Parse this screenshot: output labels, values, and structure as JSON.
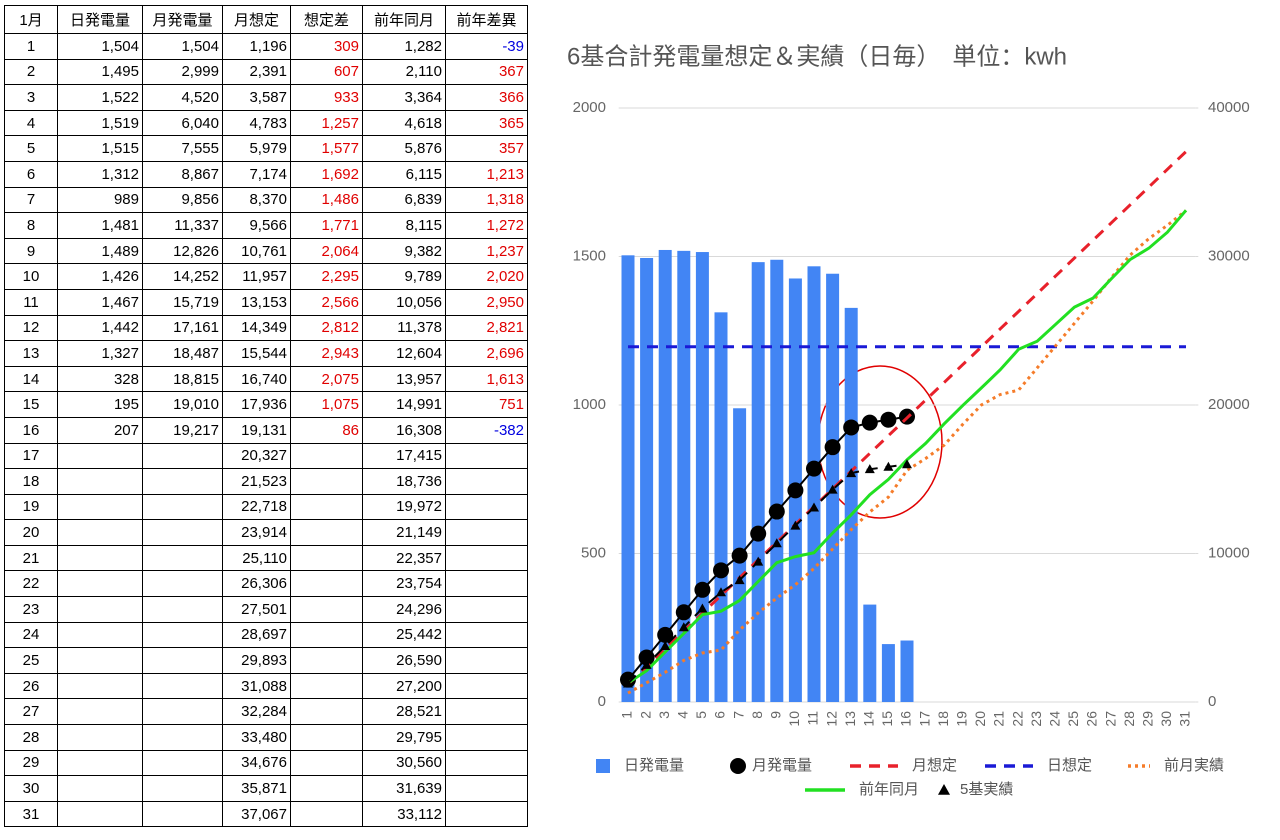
{
  "table": {
    "header": [
      "1月",
      "日発電量",
      "月発電量",
      "月想定",
      "想定差",
      "前年同月",
      "前年差異"
    ],
    "rows": [
      [
        "1",
        "1,504",
        "1,504",
        "1,196",
        "309",
        "1,282",
        "-39"
      ],
      [
        "2",
        "1,495",
        "2,999",
        "2,391",
        "607",
        "2,110",
        "367"
      ],
      [
        "3",
        "1,522",
        "4,520",
        "3,587",
        "933",
        "3,364",
        "366"
      ],
      [
        "4",
        "1,519",
        "6,040",
        "4,783",
        "1,257",
        "4,618",
        "365"
      ],
      [
        "5",
        "1,515",
        "7,555",
        "5,979",
        "1,577",
        "5,876",
        "357"
      ],
      [
        "6",
        "1,312",
        "8,867",
        "7,174",
        "1,692",
        "6,115",
        "1,213"
      ],
      [
        "7",
        "989",
        "9,856",
        "8,370",
        "1,486",
        "6,839",
        "1,318"
      ],
      [
        "8",
        "1,481",
        "11,337",
        "9,566",
        "1,771",
        "8,115",
        "1,272"
      ],
      [
        "9",
        "1,489",
        "12,826",
        "10,761",
        "2,064",
        "9,382",
        "1,237"
      ],
      [
        "10",
        "1,426",
        "14,252",
        "11,957",
        "2,295",
        "9,789",
        "2,020"
      ],
      [
        "11",
        "1,467",
        "15,719",
        "13,153",
        "2,566",
        "10,056",
        "2,950"
      ],
      [
        "12",
        "1,442",
        "17,161",
        "14,349",
        "2,812",
        "11,378",
        "2,821"
      ],
      [
        "13",
        "1,327",
        "18,487",
        "15,544",
        "2,943",
        "12,604",
        "2,696"
      ],
      [
        "14",
        "328",
        "18,815",
        "16,740",
        "2,075",
        "13,957",
        "1,613"
      ],
      [
        "15",
        "195",
        "19,010",
        "17,936",
        "1,075",
        "14,991",
        "751"
      ],
      [
        "16",
        "207",
        "19,217",
        "19,131",
        "86",
        "16,308",
        "-382"
      ],
      [
        "17",
        null,
        null,
        "20,327",
        null,
        "17,415",
        null
      ],
      [
        "18",
        null,
        null,
        "21,523",
        null,
        "18,736",
        null
      ],
      [
        "19",
        null,
        null,
        "22,718",
        null,
        "19,972",
        null
      ],
      [
        "20",
        null,
        null,
        "23,914",
        null,
        "21,149",
        null
      ],
      [
        "21",
        null,
        null,
        "25,110",
        null,
        "22,357",
        null
      ],
      [
        "22",
        null,
        null,
        "26,306",
        null,
        "23,754",
        null
      ],
      [
        "23",
        null,
        null,
        "27,501",
        null,
        "24,296",
        null
      ],
      [
        "24",
        null,
        null,
        "28,697",
        null,
        "25,442",
        null
      ],
      [
        "25",
        null,
        null,
        "29,893",
        null,
        "26,590",
        null
      ],
      [
        "26",
        null,
        null,
        "31,088",
        null,
        "27,200",
        null
      ],
      [
        "27",
        null,
        null,
        "32,284",
        null,
        "28,521",
        null
      ],
      [
        "28",
        null,
        null,
        "33,480",
        null,
        "29,795",
        null
      ],
      [
        "29",
        null,
        null,
        "34,676",
        null,
        "30,560",
        null
      ],
      [
        "30",
        null,
        null,
        "35,871",
        null,
        "31,639",
        null
      ],
      [
        "31",
        null,
        null,
        "37,067",
        null,
        "33,112",
        null
      ]
    ]
  },
  "chart_data": {
    "type": "combo",
    "title": "6基合計発電量想定＆実績（日毎）　単位：kwh",
    "categories": [
      1,
      2,
      3,
      4,
      5,
      6,
      7,
      8,
      9,
      10,
      11,
      12,
      13,
      14,
      15,
      16,
      17,
      18,
      19,
      20,
      21,
      22,
      23,
      24,
      25,
      26,
      27,
      28,
      29,
      30,
      31
    ],
    "ylim": [
      0,
      2000
    ],
    "yticks": [
      0,
      500,
      1000,
      1500,
      2000
    ],
    "y2lim": [
      0,
      40000
    ],
    "y2ticks": [
      0,
      10000,
      20000,
      30000,
      40000
    ],
    "grid": true,
    "series": [
      {
        "name": "日発電量",
        "kind": "bar",
        "color": "#4285f4",
        "values": [
          1504,
          1495,
          1522,
          1519,
          1515,
          1312,
          989,
          1481,
          1489,
          1426,
          1467,
          1442,
          1327,
          328,
          195,
          207,
          null,
          null,
          null,
          null,
          null,
          null,
          null,
          null,
          null,
          null,
          null,
          null,
          null,
          null,
          null
        ]
      },
      {
        "name": "月発電量",
        "kind": "line",
        "marker": "circle",
        "dash": "solid",
        "color": "#000000",
        "axis": "y2",
        "values": [
          1504,
          2999,
          4520,
          6040,
          7555,
          8867,
          9856,
          11337,
          12826,
          14252,
          15719,
          17161,
          18487,
          18815,
          19010,
          19217,
          null,
          null,
          null,
          null,
          null,
          null,
          null,
          null,
          null,
          null,
          null,
          null,
          null,
          null,
          null
        ]
      },
      {
        "name": "月想定",
        "kind": "line",
        "dash": "dashed",
        "color": "#e8212b",
        "axis": "y2",
        "values": [
          1196,
          2391,
          3587,
          4783,
          5979,
          7174,
          8370,
          9566,
          10761,
          11957,
          13153,
          14349,
          15544,
          16740,
          17936,
          19131,
          20327,
          21523,
          22718,
          23914,
          25110,
          26306,
          27501,
          28697,
          29893,
          31088,
          32284,
          33480,
          34676,
          35871,
          37067
        ]
      },
      {
        "name": "日想定",
        "kind": "line",
        "dash": "dashed",
        "color": "#1a1ad6",
        "values": [
          1196,
          1196,
          1196,
          1196,
          1196,
          1196,
          1196,
          1196,
          1196,
          1196,
          1196,
          1196,
          1196,
          1196,
          1196,
          1196,
          1196,
          1196,
          1196,
          1196,
          1196,
          1196,
          1196,
          1196,
          1196,
          1196,
          1196,
          1196,
          1196,
          1196,
          1196
        ]
      },
      {
        "name": "前月実績",
        "kind": "line",
        "dash": "dotted",
        "color": "#f57c2a",
        "axis": "y2",
        "values": [
          600,
          1300,
          2000,
          2800,
          3300,
          3500,
          4850,
          6000,
          7000,
          7900,
          9000,
          10300,
          11600,
          12800,
          13800,
          15600,
          16400,
          17300,
          18700,
          20000,
          20700,
          21000,
          22500,
          24000,
          25500,
          27000,
          28600,
          30100,
          31200,
          32100,
          33100
        ]
      },
      {
        "name": "前年同月",
        "kind": "line",
        "dash": "solid",
        "color": "#22e022",
        "axis": "y2",
        "values": [
          1282,
          2110,
          3364,
          4618,
          5876,
          6115,
          6839,
          8115,
          9382,
          9789,
          10056,
          11378,
          12604,
          13957,
          14991,
          16308,
          17415,
          18736,
          19972,
          21149,
          22357,
          23754,
          24296,
          25442,
          26590,
          27200,
          28521,
          29795,
          30560,
          31639,
          33112
        ]
      },
      {
        "name": "5基実績",
        "kind": "line",
        "marker": "triangle",
        "dash": "dashed",
        "color": "#000000",
        "axis": "y2",
        "values": [
          1250,
          2500,
          3770,
          5030,
          6300,
          7390,
          8210,
          9450,
          10690,
          11880,
          13100,
          14300,
          15410,
          15680,
          15840,
          16010,
          null,
          null,
          null,
          null,
          null,
          null,
          null,
          null,
          null,
          null,
          null,
          null,
          null,
          null,
          null
        ]
      }
    ]
  }
}
